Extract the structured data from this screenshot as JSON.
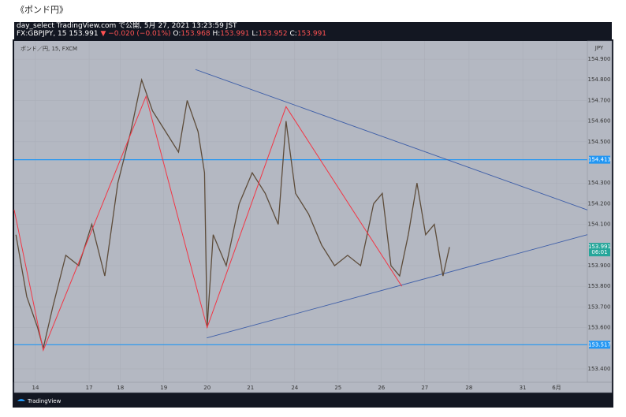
{
  "header": {
    "caption": "《ポンド円》",
    "published": "day_select TradingView.com で公開, 5月 27, 2021 13:23:59 JST",
    "quote": [
      {
        "text": "FX:GBPJPY, 15 153.991 ",
        "color": "#ffffff"
      },
      {
        "text": "▼ −0.020 (−0.01%) ",
        "color": "#ff5252"
      },
      {
        "text": "O:",
        "color": "#ffffff"
      },
      {
        "text": "153.968 ",
        "color": "#ff5252"
      },
      {
        "text": "H:",
        "color": "#ffffff"
      },
      {
        "text": "153.991 ",
        "color": "#ff5252"
      },
      {
        "text": "L:",
        "color": "#ffffff"
      },
      {
        "text": "153.952 ",
        "color": "#ff5252"
      },
      {
        "text": "C:",
        "color": "#ffffff"
      },
      {
        "text": "153.991",
        "color": "#ff5252"
      }
    ]
  },
  "footer": {
    "brand": "TradingView"
  },
  "chart_data": {
    "type": "line",
    "legend_text": "ポンド／円, 15, FXCM",
    "currency": "JPY",
    "color": "#5d4c3a",
    "x": [
      -0.45,
      -0.2,
      0.05,
      0.18,
      0.4,
      0.7,
      1.0,
      1.3,
      1.6,
      1.9,
      2.2,
      2.45,
      2.7,
      3.0,
      3.3,
      3.5,
      3.75,
      3.9,
      3.96,
      4.1,
      4.4,
      4.7,
      5.0,
      5.3,
      5.6,
      5.78,
      6.0,
      6.3,
      6.6,
      6.9,
      7.2,
      7.5,
      7.8,
      8.0,
      8.2,
      8.4,
      8.6,
      8.8,
      9.0,
      9.2,
      9.4,
      9.55
    ],
    "values": [
      154.05,
      153.75,
      153.6,
      153.5,
      153.7,
      153.95,
      153.9,
      154.1,
      153.85,
      154.3,
      154.55,
      154.8,
      154.65,
      154.55,
      154.45,
      154.7,
      154.55,
      154.35,
      153.6,
      154.05,
      153.9,
      154.2,
      154.35,
      154.25,
      154.1,
      154.6,
      154.25,
      154.15,
      154.0,
      153.9,
      153.95,
      153.9,
      154.2,
      154.25,
      153.9,
      153.85,
      154.05,
      154.3,
      154.05,
      154.1,
      153.85,
      153.99
    ],
    "xlim": [
      -0.49,
      12.73
    ],
    "xticks": [
      {
        "value": 0,
        "label": "14"
      },
      {
        "value": 1.24,
        "label": "17"
      },
      {
        "value": 1.96,
        "label": "18"
      },
      {
        "value": 2.96,
        "label": "19"
      },
      {
        "value": 3.96,
        "label": "20"
      },
      {
        "value": 4.96,
        "label": "21"
      },
      {
        "value": 5.98,
        "label": "24"
      },
      {
        "value": 6.98,
        "label": "25"
      },
      {
        "value": 7.98,
        "label": "26"
      },
      {
        "value": 8.98,
        "label": "27"
      },
      {
        "value": 10,
        "label": "28"
      },
      {
        "value": 11.24,
        "label": "31"
      },
      {
        "value": 12.02,
        "label": "6月"
      }
    ],
    "ylim": [
      153.335,
      154.988
    ],
    "yticks": [
      {
        "value": 154.9,
        "label": "154.900"
      },
      {
        "value": 154.8,
        "label": "154.800"
      },
      {
        "value": 154.7,
        "label": "154.700"
      },
      {
        "value": 154.6,
        "label": "154.600"
      },
      {
        "value": 154.5,
        "label": "154.500"
      },
      {
        "value": 154.3,
        "label": "154.300"
      },
      {
        "value": 154.2,
        "label": "154.200"
      },
      {
        "value": 154.1,
        "label": "154.100"
      },
      {
        "value": 153.9,
        "label": "153.900"
      },
      {
        "value": 153.8,
        "label": "153.800"
      },
      {
        "value": 153.7,
        "label": "153.700"
      },
      {
        "value": 153.6,
        "label": "153.600"
      },
      {
        "value": 153.4,
        "label": "153.400"
      }
    ],
    "horizontal_lines": [
      154.413,
      153.517
    ],
    "hline_color": "#2196f3",
    "price_labels": [
      154.413,
      153.991,
      153.517
    ],
    "price_label_colors": [
      "#2196f3",
      "#26a69a",
      "#2196f3"
    ],
    "countdown": "06:01",
    "trend_lines": [
      {
        "x": [
          3.69,
          12.73
        ],
        "y": [
          154.85,
          154.17
        ]
      },
      {
        "x": [
          3.95,
          12.73
        ],
        "y": [
          153.55,
          154.05
        ]
      }
    ],
    "trend_color": "#3f5fa8",
    "zigzag": {
      "x": [
        -0.49,
        0.18,
        2.55,
        3.96,
        5.78,
        8.45
      ],
      "y": [
        154.17,
        153.49,
        154.72,
        153.6,
        154.67,
        153.8
      ],
      "color": "#f23645"
    }
  }
}
